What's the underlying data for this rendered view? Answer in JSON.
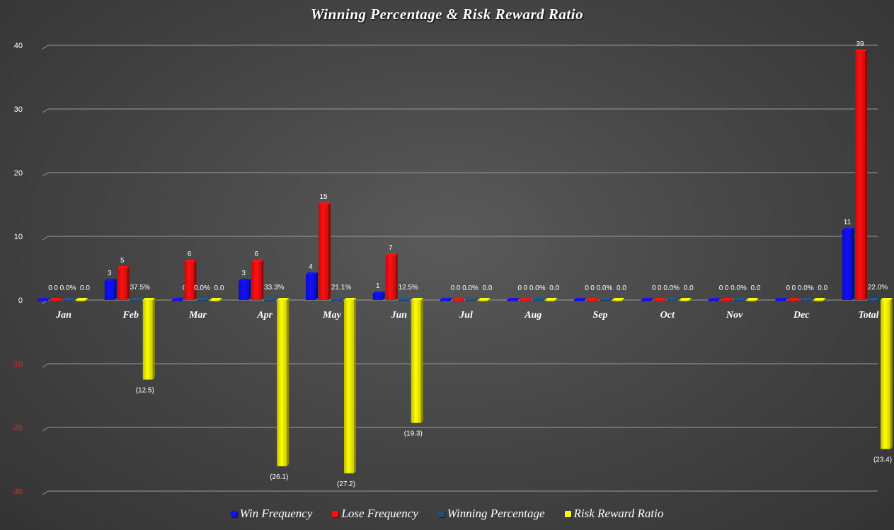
{
  "chart_data": {
    "type": "bar",
    "title": "Winning Percentage & Risk Reward Ratio",
    "categories": [
      "Jan",
      "Feb",
      "Mar",
      "Apr",
      "May",
      "Jun",
      "Jul",
      "Aug",
      "Sep",
      "Oct",
      "Nov",
      "Dec",
      "Total"
    ],
    "ylim": [
      -30,
      40
    ],
    "yticks": [
      -30,
      -20,
      -10,
      0,
      10,
      20,
      30,
      40
    ],
    "ytick_labels": [
      "-30",
      "-20",
      "-10",
      "0",
      "10",
      "20",
      "30",
      "40"
    ],
    "ytick_colors": {
      "positive": "#ffffff",
      "negative": "#ff2020"
    },
    "grid": true,
    "legend_position": "bottom",
    "series": [
      {
        "name": "Win Frequency",
        "color": "#1010ff",
        "values": [
          0,
          3,
          0,
          3,
          4,
          1,
          0,
          0,
          0,
          0,
          0,
          0,
          11
        ],
        "labels": [
          "0",
          "3",
          "0",
          "3",
          "4",
          "1",
          "0",
          "0",
          "0",
          "0",
          "0",
          "0",
          "11"
        ]
      },
      {
        "name": "Lose Frequency",
        "color": "#ff1010",
        "values": [
          0,
          5,
          6,
          6,
          15,
          7,
          0,
          0,
          0,
          0,
          0,
          0,
          39
        ],
        "labels": [
          "0",
          "5",
          "6",
          "6",
          "15",
          "7",
          "0",
          "0",
          "0",
          "0",
          "0",
          "0",
          "39"
        ]
      },
      {
        "name": "Winning Percentage",
        "color": "#1f4e79",
        "values": [
          0,
          0.375,
          0,
          0.333,
          0.211,
          0.125,
          0,
          0,
          0,
          0,
          0,
          0,
          0.22
        ],
        "labels": [
          "0.0%",
          "37.5%",
          "0.0%",
          "33.3%",
          "21.1%",
          "12.5%",
          "0.0%",
          "0.0%",
          "0.0%",
          "0.0%",
          "0.0%",
          "0.0%",
          "22.0%"
        ]
      },
      {
        "name": "Risk Reward Ratio",
        "color": "#ffff00",
        "values": [
          0,
          -12.5,
          0,
          -26.1,
          -27.2,
          -19.3,
          0,
          0,
          0,
          0,
          0,
          0,
          -23.4
        ],
        "labels": [
          "0.0",
          "(12.5)",
          "0.0",
          "(26.1)",
          "(27.2)",
          "(19.3)",
          "0.0",
          "0.0",
          "0.0",
          "0.0",
          "0.0",
          "0.0",
          "(23.4)"
        ]
      }
    ]
  }
}
